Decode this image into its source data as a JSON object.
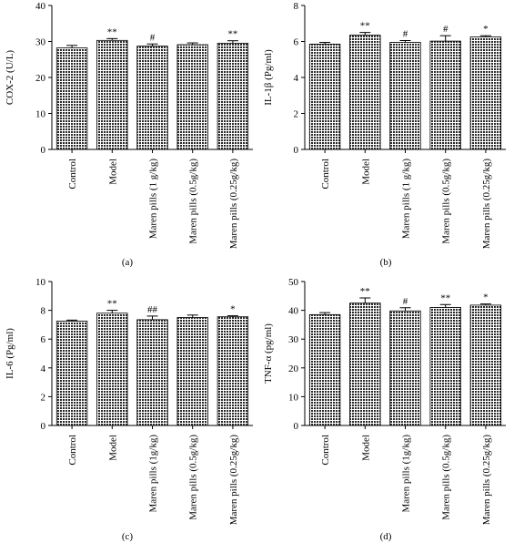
{
  "chart_data": [
    {
      "type": "bar",
      "panel_label": "(a)",
      "ylabel": "COX-2 (U/L)",
      "ylim": [
        0,
        40
      ],
      "yticks": [
        "0",
        "10",
        "20",
        "30",
        "40"
      ],
      "categories": [
        "Control",
        "Model",
        "Maren pills (1 g/kg)",
        "Maren pills (0.5g/kg)",
        "Maren pills (0.25g/kg)"
      ],
      "values": [
        28.2,
        30.3,
        28.7,
        29.1,
        29.5
      ],
      "errors": [
        0.7,
        0.5,
        0.6,
        0.5,
        0.7
      ],
      "annotations": [
        "",
        "**",
        "#",
        "",
        "**"
      ],
      "fill_color": "#4a4a4a"
    },
    {
      "type": "bar",
      "panel_label": "(b)",
      "ylabel": "IL-1β (Pg/ml)",
      "ylim": [
        0,
        8
      ],
      "yticks": [
        "0",
        "2",
        "4",
        "6",
        "8"
      ],
      "categories": [
        "Control",
        "Model",
        "Maren pills (1 g/kg)",
        "Maren pills (0.5g/kg)",
        "Maren pills (0.25g/kg)"
      ],
      "values": [
        5.85,
        6.35,
        5.95,
        6.02,
        6.25
      ],
      "errors": [
        0.1,
        0.15,
        0.1,
        0.3,
        0.07
      ],
      "annotations": [
        "",
        "**",
        "#",
        "#",
        "*"
      ],
      "fill_color": "#4a4a4a"
    },
    {
      "type": "bar",
      "panel_label": "(c)",
      "ylabel": "IL-6 (Pg/ml)",
      "ylim": [
        0,
        10
      ],
      "yticks": [
        "0",
        "2",
        "4",
        "6",
        "8",
        "10"
      ],
      "categories": [
        "Control",
        "Model",
        "Maren pills (1g/kg)",
        "Maren pills (0.5g/kg)",
        "Maren pills (0.25g/kg)"
      ],
      "values": [
        7.25,
        7.8,
        7.35,
        7.5,
        7.55
      ],
      "errors": [
        0.07,
        0.2,
        0.25,
        0.17,
        0.07
      ],
      "annotations": [
        "",
        "**",
        "##",
        "",
        "*"
      ],
      "fill_color": "#4a4a4a"
    },
    {
      "type": "bar",
      "panel_label": "(d)",
      "ylabel": "TNF-α (pg/ml)",
      "ylim": [
        0,
        50
      ],
      "yticks": [
        "0",
        "10",
        "20",
        "30",
        "40",
        "50"
      ],
      "categories": [
        "Control",
        "Model",
        "Maren pills (1g/kg)",
        "Maren pills (0.5g/kg)",
        "Maren pills (0.25g/kg)"
      ],
      "values": [
        38.5,
        42.5,
        39.8,
        41.0,
        41.8
      ],
      "errors": [
        0.7,
        1.8,
        1.1,
        1.0,
        0.4
      ],
      "annotations": [
        "",
        "**",
        "#",
        "**",
        "*"
      ],
      "fill_color": "#4a4a4a"
    }
  ]
}
